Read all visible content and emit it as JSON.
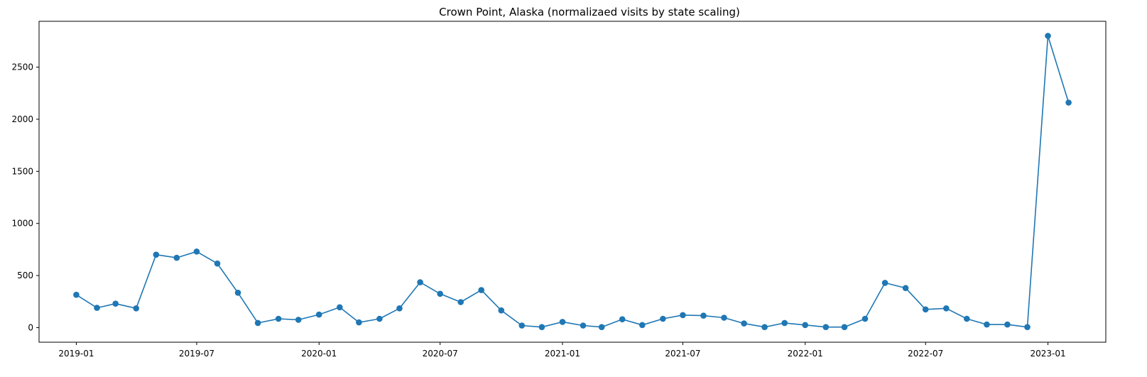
{
  "chart_data": {
    "type": "line",
    "title": "Crown Point, Alaska (normalizaed visits by state scaling)",
    "xlabel": "",
    "ylabel": "",
    "x_axis": "date",
    "x_ticks": [
      "2019-01",
      "2019-07",
      "2020-01",
      "2020-07",
      "2021-01",
      "2021-07",
      "2022-01",
      "2022-07",
      "2023-01"
    ],
    "y_ticks": [
      0,
      500,
      1000,
      1500,
      2000,
      2500
    ],
    "xlim": [
      "2018-11-06",
      "2023-03-29"
    ],
    "ylim": [
      -140,
      2940
    ],
    "grid": false,
    "legend": "none",
    "marker": "circle",
    "color": "#1f77b4",
    "series": [
      {
        "x": [
          "2019-01-01",
          "2019-02-01",
          "2019-03-01",
          "2019-04-01",
          "2019-05-01",
          "2019-06-01",
          "2019-07-01",
          "2019-08-01",
          "2019-09-01",
          "2019-10-01",
          "2019-11-01",
          "2019-12-01",
          "2020-01-01",
          "2020-02-01",
          "2020-03-01",
          "2020-04-01",
          "2020-05-01",
          "2020-06-01",
          "2020-07-01",
          "2020-08-01",
          "2020-09-01",
          "2020-10-01",
          "2020-11-01",
          "2020-12-01",
          "2021-01-01",
          "2021-02-01",
          "2021-03-01",
          "2021-04-01",
          "2021-05-01",
          "2021-06-01",
          "2021-07-01",
          "2021-08-01",
          "2021-09-01",
          "2021-10-01",
          "2021-11-01",
          "2021-12-01",
          "2022-01-01",
          "2022-02-01",
          "2022-03-01",
          "2022-04-01",
          "2022-05-01",
          "2022-06-01",
          "2022-07-01",
          "2022-08-01",
          "2022-09-01",
          "2022-10-01",
          "2022-11-01",
          "2022-12-01",
          "2023-01-01",
          "2023-02-01"
        ],
        "values": [
          315,
          190,
          230,
          185,
          700,
          670,
          730,
          615,
          335,
          45,
          85,
          75,
          125,
          195,
          50,
          85,
          185,
          435,
          325,
          245,
          360,
          165,
          20,
          5,
          55,
          20,
          5,
          80,
          25,
          85,
          120,
          115,
          95,
          40,
          5,
          45,
          25,
          5,
          5,
          85,
          430,
          380,
          175,
          185,
          85,
          30,
          30,
          5,
          2800,
          2160
        ]
      }
    ]
  }
}
